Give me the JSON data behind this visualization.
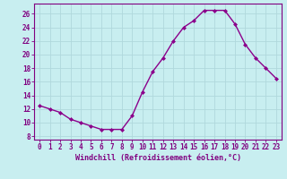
{
  "x": [
    0,
    1,
    2,
    3,
    4,
    5,
    6,
    7,
    8,
    9,
    10,
    11,
    12,
    13,
    14,
    15,
    16,
    17,
    18,
    19,
    20,
    21,
    22,
    23
  ],
  "y": [
    12.5,
    12.0,
    11.5,
    10.5,
    10.0,
    9.5,
    9.0,
    9.0,
    9.0,
    11.0,
    14.5,
    17.5,
    19.5,
    22.0,
    24.0,
    25.0,
    26.5,
    26.5,
    26.5,
    24.5,
    21.5,
    19.5,
    18.0,
    16.5
  ],
  "line_color": "#8B008B",
  "marker": "D",
  "marker_size": 2.0,
  "bg_color": "#c8eef0",
  "grid_color": "#b0d8dc",
  "xlabel": "Windchill (Refroidissement éolien,°C)",
  "ylabel_ticks": [
    8,
    10,
    12,
    14,
    16,
    18,
    20,
    22,
    24,
    26
  ],
  "xlim": [
    -0.5,
    23.5
  ],
  "ylim": [
    7.5,
    27.5
  ],
  "xtick_labels": [
    "0",
    "1",
    "2",
    "3",
    "4",
    "5",
    "6",
    "7",
    "8",
    "9",
    "10",
    "11",
    "12",
    "13",
    "14",
    "15",
    "16",
    "17",
    "18",
    "19",
    "20",
    "21",
    "22",
    "23"
  ],
  "axis_color": "#800080",
  "tick_fontsize": 5.5,
  "xlabel_fontsize": 6.0,
  "linewidth": 1.0
}
